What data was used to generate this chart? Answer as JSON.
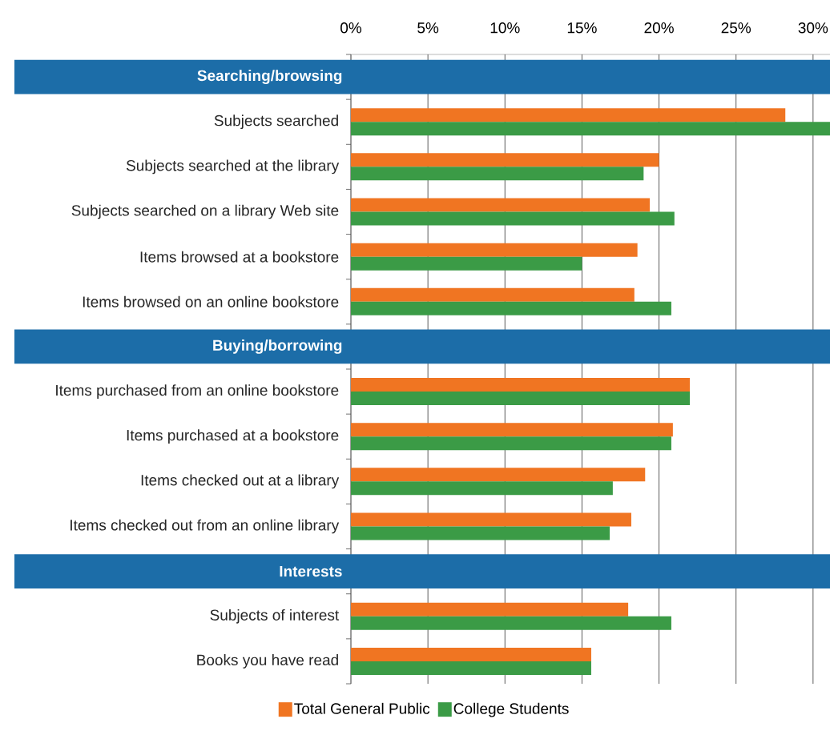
{
  "chart_data": {
    "type": "bar",
    "orientation": "horizontal",
    "categories": [
      "Searching/browsing",
      "Subjects searched",
      "Subjects searched at the library",
      "Subjects searched on a library Web site",
      "Items browsed at a bookstore",
      "Items browsed on an online bookstore",
      "Buying/borrowing",
      "Items purchased from an online bookstore",
      "Items purchased at a bookstore",
      "Items checked out at a library",
      "Items checked out from an online library",
      "Interests",
      "Subjects of interest",
      "Books you have read"
    ],
    "series": [
      {
        "name": "Total General Public",
        "color": "#f07522",
        "values": [
          null,
          28.2,
          20.0,
          19.4,
          18.6,
          18.4,
          null,
          22.0,
          20.9,
          19.1,
          18.2,
          null,
          18.0,
          15.6
        ]
      },
      {
        "name": "College Students",
        "color": "#3b9b46",
        "values": [
          null,
          31.1,
          19.0,
          21.0,
          15.0,
          20.8,
          null,
          22.0,
          20.8,
          17.0,
          16.8,
          null,
          20.8,
          15.6
        ]
      }
    ],
    "bands": [
      {
        "axis": "y",
        "from": "Searching/browsing",
        "to": "Searching/browsing",
        "color": "#1c6da8"
      },
      {
        "axis": "y",
        "from": "Buying/borrowing",
        "to": "Buying/borrowing",
        "color": "#1c6da8"
      },
      {
        "axis": "y",
        "from": "Interests",
        "to": "Interests",
        "color": "#1c6da8"
      }
    ],
    "xlim": [
      0,
      31.1
    ],
    "xticks": [
      {
        "value": 0,
        "label": "0%"
      },
      {
        "value": 5,
        "label": "5%"
      },
      {
        "value": 10,
        "label": "10%"
      },
      {
        "value": 15,
        "label": "15%"
      },
      {
        "value": 20,
        "label": "20%"
      },
      {
        "value": 25,
        "label": "25%"
      },
      {
        "value": 30,
        "label": "30%"
      }
    ],
    "grid": "x",
    "legend": "bottom"
  }
}
